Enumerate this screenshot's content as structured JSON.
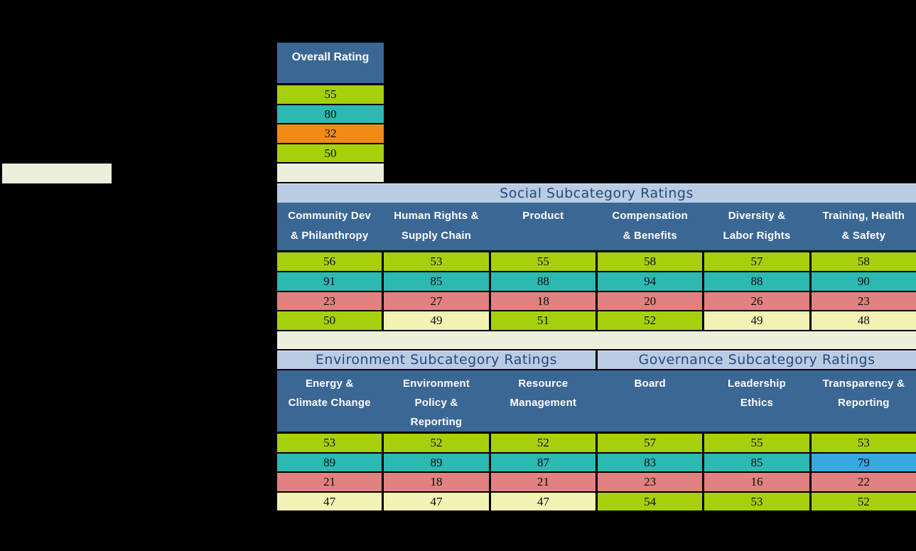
{
  "colors": {
    "green": "#A7D00C",
    "teal": "#2CB9B1",
    "orange": "#F28A17",
    "salmon": "#E18181",
    "pale_yellow": "#F2F2B4",
    "cream": "#EBEFDC",
    "sky_blue": "#3AA8E0",
    "header_blue": "#3B6795",
    "band_blue": "#B9CCE4",
    "title_text": "#26497B",
    "page_background": "#000000"
  },
  "left_label_box": {
    "text": ""
  },
  "overall_table": {
    "header": "Overall Rating",
    "cells": [
      {
        "v": "55",
        "c": "green"
      },
      {
        "v": "80",
        "c": "teal"
      },
      {
        "v": "32",
        "c": "orange"
      },
      {
        "v": "50",
        "c": "green"
      },
      {
        "v": "",
        "c": "cream"
      }
    ]
  },
  "social_table": {
    "title": "Social Subcategory Ratings",
    "columns": [
      [
        "Community Dev",
        "& Philanthropy"
      ],
      [
        "Human Rights &",
        "Supply Chain"
      ],
      [
        "Product"
      ],
      [
        "Compensation",
        "& Benefits"
      ],
      [
        "Diversity &",
        "Labor Rights"
      ],
      [
        "Training, Health",
        "& Safety"
      ]
    ],
    "rows": [
      [
        {
          "v": "56",
          "c": "green"
        },
        {
          "v": "53",
          "c": "green"
        },
        {
          "v": "55",
          "c": "green"
        },
        {
          "v": "58",
          "c": "green"
        },
        {
          "v": "57",
          "c": "green"
        },
        {
          "v": "58",
          "c": "green"
        }
      ],
      [
        {
          "v": "91",
          "c": "teal"
        },
        {
          "v": "85",
          "c": "teal"
        },
        {
          "v": "88",
          "c": "teal"
        },
        {
          "v": "94",
          "c": "teal"
        },
        {
          "v": "88",
          "c": "teal"
        },
        {
          "v": "90",
          "c": "teal"
        }
      ],
      [
        {
          "v": "23",
          "c": "salmon"
        },
        {
          "v": "27",
          "c": "salmon"
        },
        {
          "v": "18",
          "c": "salmon"
        },
        {
          "v": "20",
          "c": "salmon"
        },
        {
          "v": "26",
          "c": "salmon"
        },
        {
          "v": "23",
          "c": "salmon"
        }
      ],
      [
        {
          "v": "50",
          "c": "green"
        },
        {
          "v": "49",
          "c": "pale_yellow"
        },
        {
          "v": "51",
          "c": "green"
        },
        {
          "v": "52",
          "c": "green"
        },
        {
          "v": "49",
          "c": "pale_yellow"
        },
        {
          "v": "48",
          "c": "pale_yellow"
        }
      ]
    ],
    "footer_row": {
      "text": "",
      "color": "cream"
    }
  },
  "env_gov_table": {
    "titles": [
      {
        "label": "Environment Subcategory Ratings"
      },
      {
        "label": "Governance Subcategory Ratings"
      }
    ],
    "columns": [
      [
        "Energy &",
        "Climate Change"
      ],
      [
        "Environment",
        "Policy &",
        "Reporting"
      ],
      [
        "Resource",
        "Management"
      ],
      [
        "Board"
      ],
      [
        "Leadership",
        "Ethics"
      ],
      [
        "Transparency &",
        "Reporting"
      ]
    ],
    "rows": [
      [
        {
          "v": "53",
          "c": "green"
        },
        {
          "v": "52",
          "c": "green"
        },
        {
          "v": "52",
          "c": "green"
        },
        {
          "v": "57",
          "c": "green"
        },
        {
          "v": "55",
          "c": "green"
        },
        {
          "v": "53",
          "c": "green"
        }
      ],
      [
        {
          "v": "89",
          "c": "teal"
        },
        {
          "v": "89",
          "c": "teal"
        },
        {
          "v": "87",
          "c": "teal"
        },
        {
          "v": "83",
          "c": "teal"
        },
        {
          "v": "85",
          "c": "teal"
        },
        {
          "v": "79",
          "c": "sky_blue"
        }
      ],
      [
        {
          "v": "21",
          "c": "salmon"
        },
        {
          "v": "18",
          "c": "salmon"
        },
        {
          "v": "21",
          "c": "salmon"
        },
        {
          "v": "23",
          "c": "salmon"
        },
        {
          "v": "16",
          "c": "salmon"
        },
        {
          "v": "22",
          "c": "salmon"
        }
      ],
      [
        {
          "v": "47",
          "c": "pale_yellow"
        },
        {
          "v": "47",
          "c": "pale_yellow"
        },
        {
          "v": "47",
          "c": "pale_yellow"
        },
        {
          "v": "54",
          "c": "green"
        },
        {
          "v": "53",
          "c": "green"
        },
        {
          "v": "52",
          "c": "green"
        }
      ]
    ]
  },
  "chart_data": [
    {
      "type": "table",
      "title": "Overall Rating",
      "columns": [
        "Overall Rating"
      ],
      "rows": [
        [
          55
        ],
        [
          80
        ],
        [
          32
        ],
        [
          50
        ]
      ]
    },
    {
      "type": "table",
      "title": "Social Subcategory Ratings",
      "columns": [
        "Community Dev & Philanthropy",
        "Human Rights & Supply Chain",
        "Product",
        "Compensation & Benefits",
        "Diversity & Labor Rights",
        "Training, Health & Safety"
      ],
      "rows": [
        [
          56,
          53,
          55,
          58,
          57,
          58
        ],
        [
          91,
          85,
          88,
          94,
          88,
          90
        ],
        [
          23,
          27,
          18,
          20,
          26,
          23
        ],
        [
          50,
          49,
          51,
          52,
          49,
          48
        ]
      ]
    },
    {
      "type": "table",
      "title": "Environment Subcategory Ratings & Governance Subcategory Ratings",
      "columns": [
        "Energy & Climate Change",
        "Environment Policy & Reporting",
        "Resource Management",
        "Board",
        "Leadership Ethics",
        "Transparency & Reporting"
      ],
      "rows": [
        [
          53,
          52,
          52,
          57,
          55,
          53
        ],
        [
          89,
          89,
          87,
          83,
          85,
          79
        ],
        [
          21,
          18,
          21,
          23,
          16,
          22
        ],
        [
          47,
          47,
          47,
          54,
          53,
          52
        ]
      ]
    }
  ]
}
